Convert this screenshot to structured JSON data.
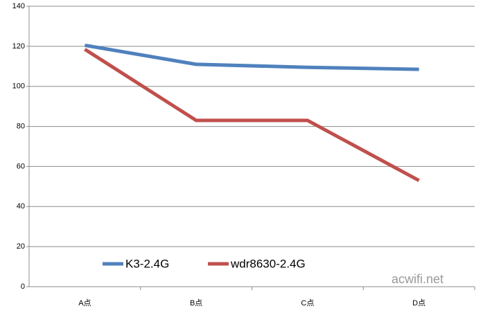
{
  "chart_data": {
    "type": "line",
    "categories": [
      "A点",
      "B点",
      "C点",
      "D点"
    ],
    "series": [
      {
        "name": "K3-2.4G",
        "color": "#4f81bd",
        "values": [
          120.5,
          111,
          109.5,
          108.5
        ]
      },
      {
        "name": "wdr8630-2.4G",
        "color": "#c0504d",
        "values": [
          118.5,
          83,
          83,
          53
        ]
      }
    ],
    "ylim": [
      0,
      140
    ],
    "yticks": [
      0,
      20,
      40,
      60,
      80,
      100,
      120,
      140
    ],
    "grid": true,
    "watermark": "acwifi.net"
  }
}
